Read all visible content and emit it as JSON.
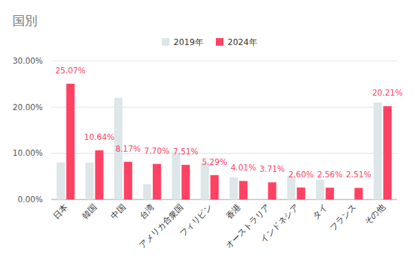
{
  "chart_data": {
    "type": "bar",
    "title": "国別",
    "categories": [
      "日本",
      "韓国",
      "中国",
      "台湾",
      "アメリカ合衆国",
      "フィリピン",
      "香港",
      "オーストラリア",
      "インドネシア",
      "タイ",
      "フランス",
      "その他"
    ],
    "series": [
      {
        "name": "2019年",
        "color": "#dde6e9",
        "values": [
          8.0,
          8.0,
          22.0,
          3.3,
          10.2,
          8.0,
          4.8,
          null,
          5.0,
          4.3,
          null,
          21.0
        ]
      },
      {
        "name": "2024年",
        "color": "#ff4263",
        "values": [
          25.07,
          10.64,
          8.17,
          7.7,
          7.51,
          5.29,
          4.01,
          3.71,
          2.6,
          2.56,
          2.51,
          20.21
        ],
        "value_labels": [
          "25.07%",
          "10.64%",
          "8.17%",
          "7.70%",
          "7.51%",
          "5.29%",
          "4.01%",
          "3.71%",
          "2.60%",
          "2.56%",
          "2.51%",
          "20.21%"
        ]
      }
    ],
    "ylim": [
      0,
      30
    ],
    "yticks": [
      {
        "value": 0,
        "label": "0.00%"
      },
      {
        "value": 10,
        "label": "10.00%"
      },
      {
        "value": 20,
        "label": "20.00%"
      },
      {
        "value": 30,
        "label": "30.00%"
      }
    ],
    "grid": true,
    "legend": "top",
    "data_labels": true
  }
}
